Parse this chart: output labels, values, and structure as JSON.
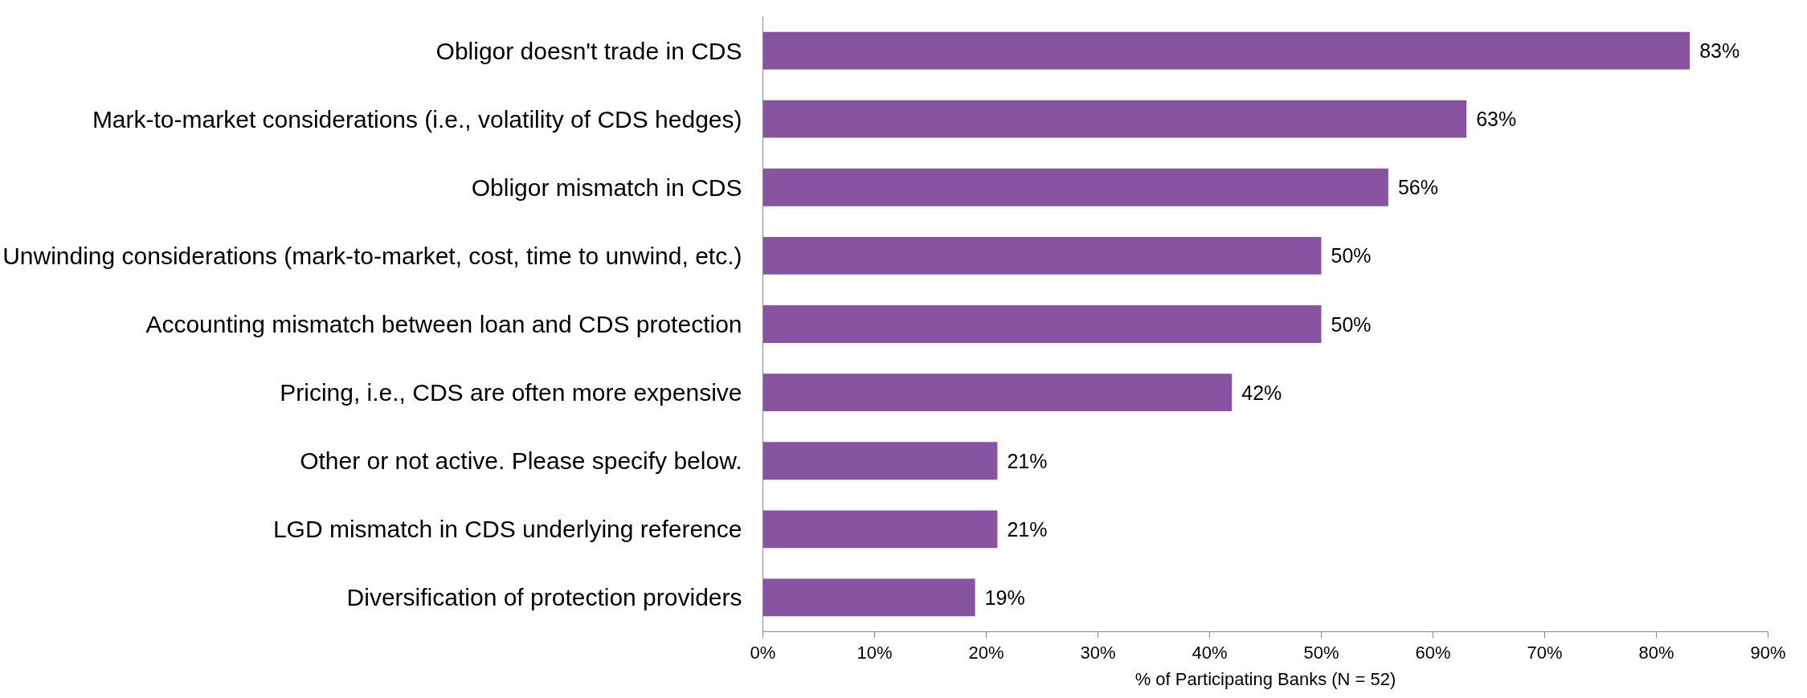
{
  "chart_data": {
    "type": "bar",
    "orientation": "horizontal",
    "xlabel": "% of Participating Banks (N = 52)",
    "categories": [
      "Obligor doesn't trade in CDS",
      "Mark-to-market considerations (i.e., volatility of CDS hedges)",
      "Obligor mismatch in CDS",
      "Unwinding considerations (mark-to-market, cost, time to unwind, etc.)",
      "Accounting mismatch between loan and CDS protection",
      "Pricing, i.e., CDS are often more expensive",
      "Other or not active. Please specify below.",
      "LGD mismatch in CDS underlying reference",
      "Diversification of protection providers"
    ],
    "values": [
      83,
      63,
      56,
      50,
      50,
      42,
      21,
      21,
      19
    ],
    "value_labels": [
      "83%",
      "63%",
      "56%",
      "50%",
      "50%",
      "42%",
      "21%",
      "21%",
      "19%"
    ],
    "color": "#8853a0",
    "xlim": [
      0,
      90
    ],
    "xticks": [
      {
        "value": 0,
        "label": "0%"
      },
      {
        "value": 10,
        "label": "10%"
      },
      {
        "value": 20,
        "label": "20%"
      },
      {
        "value": 30,
        "label": "30%"
      },
      {
        "value": 40,
        "label": "40%"
      },
      {
        "value": 50,
        "label": "50%"
      },
      {
        "value": 60,
        "label": "60%"
      },
      {
        "value": 70,
        "label": "70%"
      },
      {
        "value": 80,
        "label": "80%"
      },
      {
        "value": 90,
        "label": "90%"
      }
    ],
    "grid": false
  }
}
